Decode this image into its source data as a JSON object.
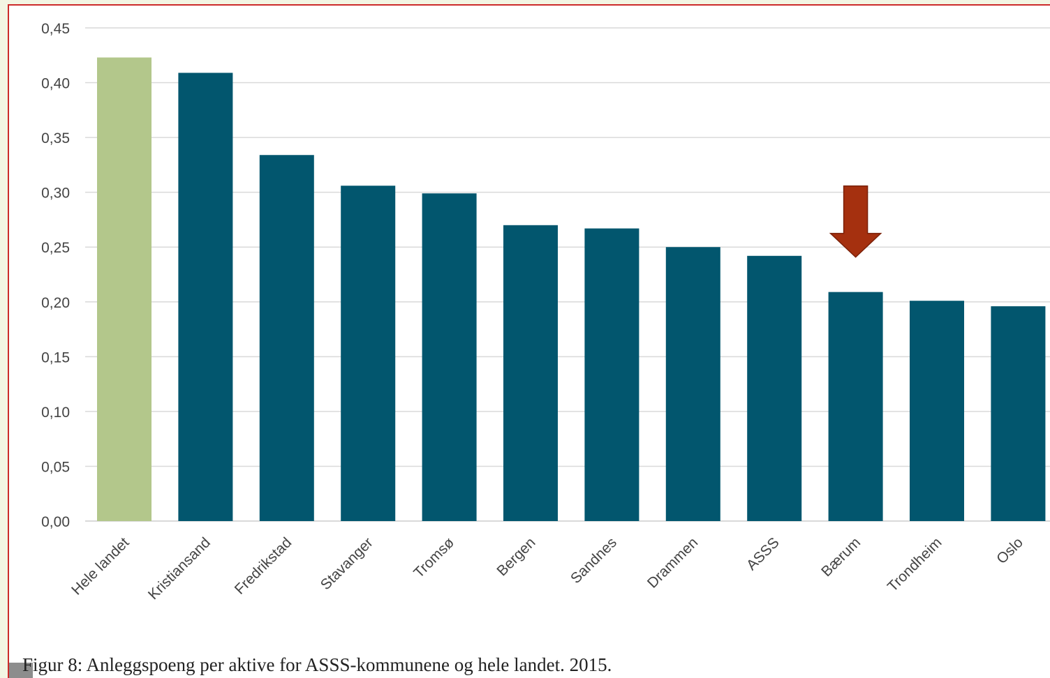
{
  "caption": "Figur 8: Anleggspoeng per aktive for ASSS-kommunene og hele landet. 2015.",
  "colors": {
    "highlight_bar": "#b3c78b",
    "bar": "#02566e",
    "arrow": "#a5300f",
    "arrow_outline": "#7a2008",
    "grid": "#d9d9d9",
    "axis_text": "#444444"
  },
  "chart_data": {
    "type": "bar",
    "title": "",
    "xlabel": "",
    "ylabel": "",
    "ylim": [
      0,
      0.45
    ],
    "yticks": [
      0,
      0.05,
      0.1,
      0.15,
      0.2,
      0.25,
      0.3,
      0.35,
      0.4,
      0.45
    ],
    "ytick_labels": [
      "0,00",
      "0,05",
      "0,10",
      "0,15",
      "0,20",
      "0,25",
      "0,30",
      "0,35",
      "0,40",
      "0,45"
    ],
    "grid": "horizontal",
    "categories": [
      "Hele landet",
      "Kristiansand",
      "Fredrikstad",
      "Stavanger",
      "Tromsø",
      "Bergen",
      "Sandnes",
      "Drammen",
      "ASSS",
      "Bærum",
      "Trondheim",
      "Oslo"
    ],
    "values": [
      0.423,
      0.409,
      0.334,
      0.306,
      0.299,
      0.27,
      0.267,
      0.25,
      0.242,
      0.209,
      0.201,
      0.196
    ],
    "highlight_category": "Hele landet",
    "annotations": [
      {
        "type": "arrow",
        "target": "Bærum",
        "direction": "down"
      }
    ]
  }
}
